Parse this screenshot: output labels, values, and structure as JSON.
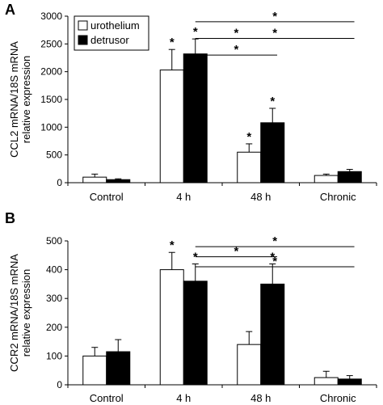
{
  "chart_data": [
    {
      "panel": "A",
      "type": "bar",
      "ylabel_line1": "CCL2 mRNA/18S mRNA",
      "ylabel_line2": "relative expression",
      "categories": [
        "Control",
        "4 h",
        "48 h",
        "Chronic"
      ],
      "series": [
        {
          "name": "urothelium",
          "color": "#ffffff",
          "values": [
            100,
            2030,
            550,
            130
          ],
          "errors": [
            55,
            370,
            150,
            25
          ]
        },
        {
          "name": "detrusor",
          "color": "#000000",
          "values": [
            55,
            2320,
            1080,
            200
          ],
          "errors": [
            15,
            270,
            260,
            40
          ]
        }
      ],
      "ylim": [
        0,
        3000
      ],
      "yticks": [
        0,
        500,
        1000,
        1500,
        2000,
        2500,
        3000
      ],
      "bar_stars": [
        {
          "category": 1,
          "series": 0,
          "label": "*"
        },
        {
          "category": 1,
          "series": 1,
          "label": "*"
        },
        {
          "category": 2,
          "series": 0,
          "label": "*"
        },
        {
          "category": 2,
          "series": 1,
          "label": "*"
        }
      ],
      "brackets": [
        {
          "from": 1,
          "to": 3,
          "level": 2900,
          "label": "*"
        },
        {
          "from": 1,
          "to": 2,
          "level": 2600,
          "label": "*"
        },
        {
          "from": 1,
          "to": 3,
          "level": 2600,
          "label": "*"
        },
        {
          "from": 1,
          "to": 2,
          "level": 2300,
          "label": "*"
        }
      ],
      "legend_position": "top-left",
      "grid": false
    },
    {
      "panel": "B",
      "type": "bar",
      "ylabel_line1": "CCR2 mRNA/18S mRNA",
      "ylabel_line2": "relative expression",
      "categories": [
        "Control",
        "4 h",
        "48 h",
        "Chronic"
      ],
      "series": [
        {
          "name": "urothelium",
          "color": "#ffffff",
          "values": [
            100,
            400,
            140,
            25
          ],
          "errors": [
            30,
            60,
            45,
            22
          ]
        },
        {
          "name": "detrusor",
          "color": "#000000",
          "values": [
            115,
            360,
            350,
            20
          ],
          "errors": [
            42,
            60,
            70,
            12
          ]
        }
      ],
      "ylim": [
        0,
        500
      ],
      "yticks": [
        0,
        100,
        200,
        300,
        400,
        500
      ],
      "bar_stars": [
        {
          "category": 1,
          "series": 0,
          "label": "*"
        },
        {
          "category": 1,
          "series": 1,
          "label": "*"
        },
        {
          "category": 2,
          "series": 1,
          "label": "*"
        }
      ],
      "brackets": [
        {
          "from": 1,
          "to": 3,
          "level": 480,
          "label": "*"
        },
        {
          "from": 1,
          "to": 2,
          "level": 445,
          "label": "*"
        },
        {
          "from": 1,
          "to": 3,
          "level": 410,
          "label": "*"
        }
      ],
      "legend_position": "none",
      "grid": false
    }
  ]
}
